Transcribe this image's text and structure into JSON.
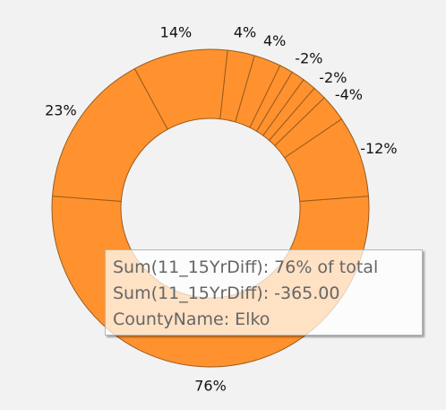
{
  "chart_data": {
    "type": "pie",
    "donut": true,
    "title": "",
    "slice_color": "#ff922e",
    "slice_stroke": "#9a5a1e",
    "series": [
      {
        "values": [
          76,
          23,
          14,
          4,
          4,
          2,
          2,
          2,
          2,
          4,
          12
        ],
        "labels": [
          "76%",
          "23%",
          "14%",
          "4%",
          "4%",
          "",
          "-2%",
          "",
          "-2%",
          "-4%",
          "-12%"
        ]
      }
    ]
  },
  "tooltip": {
    "line1": "Sum(11_15YrDiff): 76% of total",
    "line2": "Sum(11_15YrDiff): -365.00",
    "line3": "CountyName: Elko"
  }
}
